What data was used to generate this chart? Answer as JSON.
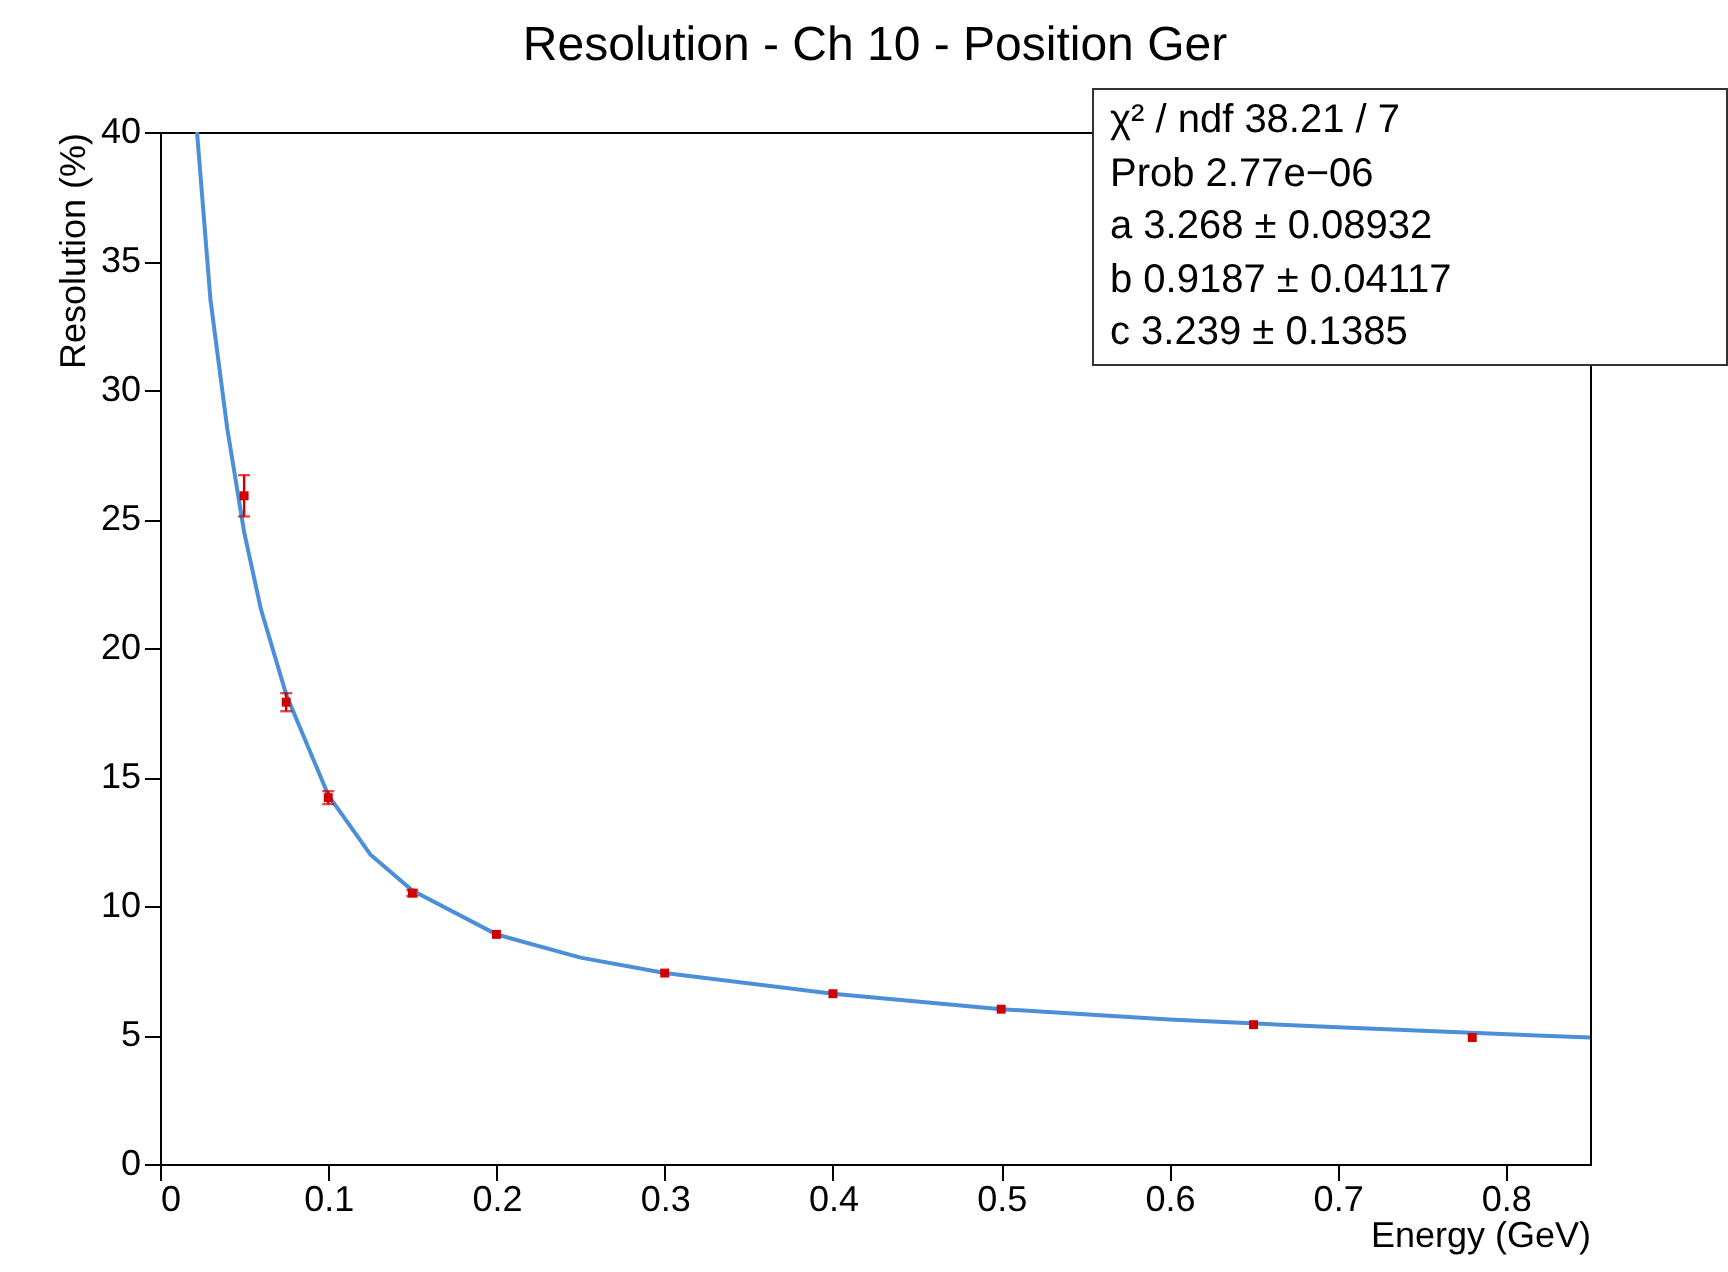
{
  "chart_data": {
    "type": "scatter",
    "title": "Resolution - Ch 10 - Position Ger",
    "xlabel": "Energy (GeV)",
    "ylabel": "Resolution (%)",
    "xlim": [
      0,
      0.85
    ],
    "xticks": [
      0,
      0.1,
      0.2,
      0.3,
      0.4,
      0.5,
      0.6,
      0.7,
      0.8
    ],
    "ylim": [
      0,
      40
    ],
    "yticks": [
      0,
      5,
      10,
      15,
      20,
      25,
      30,
      35,
      40
    ],
    "grid": false,
    "x": [
      0.05,
      0.075,
      0.1,
      0.15,
      0.2,
      0.3,
      0.4,
      0.5,
      0.65,
      0.78
    ],
    "series": [
      {
        "marker": "square",
        "color": "#d00000",
        "values": [
          25.9,
          17.9,
          14.2,
          10.5,
          8.9,
          7.4,
          6.6,
          6.0,
          5.4,
          4.9
        ],
        "errors": [
          0.8,
          0.35,
          0.25,
          0.12,
          null,
          null,
          null,
          null,
          null,
          null
        ]
      },
      {
        "type": "line",
        "color": "#4a8fd8",
        "x": [
          0.022,
          0.03,
          0.04,
          0.05,
          0.06,
          0.075,
          0.1,
          0.125,
          0.15,
          0.2,
          0.25,
          0.3,
          0.4,
          0.5,
          0.6,
          0.7,
          0.85
        ],
        "values": [
          40,
          33.5,
          28.5,
          24.5,
          21.5,
          18.2,
          14.3,
          12.0,
          10.6,
          8.9,
          8.0,
          7.4,
          6.6,
          6.0,
          5.6,
          5.3,
          4.9
        ]
      }
    ],
    "annotations": [
      "χ² / ndf 38.21 / 7",
      "Prob 2.77e−06",
      "a 3.268 ± 0.08932",
      "b 0.9187 ± 0.04117",
      "c 3.239 ± 0.1385"
    ]
  }
}
